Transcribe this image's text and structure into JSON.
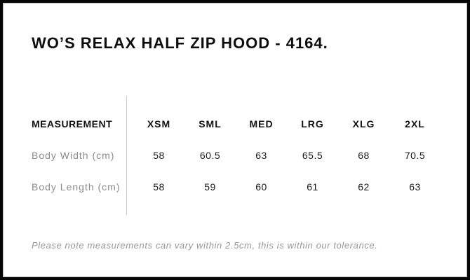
{
  "title": "WO’S RELAX HALF ZIP HOOD - 4164.",
  "table": {
    "header_label": "MEASUREMENT",
    "sizes": [
      "XSM",
      "SML",
      "MED",
      "LRG",
      "XLG",
      "2XL"
    ],
    "rows": [
      {
        "label": "Body Width (cm)",
        "values": [
          "58",
          "60.5",
          "63",
          "65.5",
          "68",
          "70.5"
        ]
      },
      {
        "label": "Body Length (cm)",
        "values": [
          "58",
          "59",
          "60",
          "61",
          "62",
          "63"
        ]
      }
    ]
  },
  "note": "Please note measurements can vary within 2.5cm, this is within our tolerance.",
  "colors": {
    "frame_border": "#060606",
    "title_text": "#0d0d0d",
    "header_text": "#111111",
    "row_label_text": "#8c8c8c",
    "value_text": "#1a1a1a",
    "note_text": "#979797",
    "divider": "#cccccc",
    "background": "#ffffff"
  }
}
